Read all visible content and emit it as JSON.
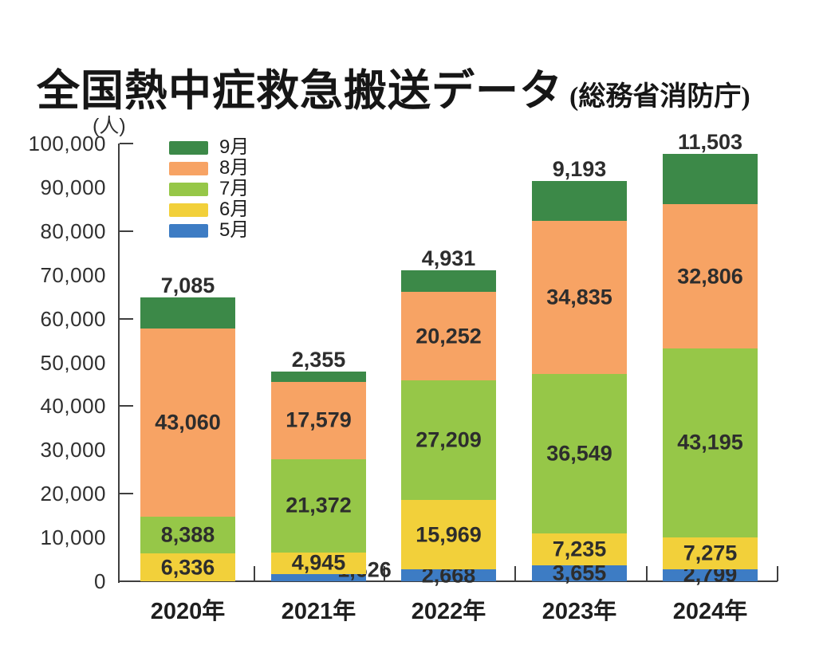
{
  "header": {
    "title": "全国熱中症救急搬送データ",
    "source": "(総務省消防庁)"
  },
  "colors": {
    "axis": "#3f3f3f",
    "value_label": "#2d2d2d",
    "background": "#ffffff"
  },
  "chart_data": {
    "type": "bar",
    "stacked": true,
    "title": "全国熱中症救急搬送データ",
    "subtitle": "(総務省消防庁)",
    "unit_label": "(人)",
    "xlabel": "",
    "ylabel": "(人)",
    "categories": [
      "2020年",
      "2021年",
      "2022年",
      "2023年",
      "2024年"
    ],
    "series": [
      {
        "name": "5月",
        "color": "#3d7cc4",
        "values": [
          null,
          1626,
          2668,
          3655,
          2799
        ],
        "label_placements": [
          "none",
          "right",
          "center",
          "center",
          "center"
        ]
      },
      {
        "name": "6月",
        "color": "#f2d03a",
        "values": [
          6336,
          4945,
          15969,
          7235,
          7275
        ],
        "label_placements": [
          "center",
          "center",
          "center",
          "center",
          "center"
        ]
      },
      {
        "name": "7月",
        "color": "#96c748",
        "values": [
          8388,
          21372,
          27209,
          36549,
          43195
        ],
        "label_placements": [
          "center",
          "center",
          "center",
          "center",
          "center"
        ]
      },
      {
        "name": "8月",
        "color": "#f7a364",
        "values": [
          43060,
          17579,
          20252,
          34835,
          32806
        ],
        "label_placements": [
          "center",
          "center",
          "center",
          "center",
          "center"
        ]
      },
      {
        "name": "9月",
        "color": "#3c8948",
        "values": [
          7085,
          2355,
          4931,
          9193,
          11503
        ],
        "label_placements": [
          "above",
          "above",
          "above",
          "above",
          "above"
        ]
      }
    ],
    "totals": [
      64869,
      47877,
      71029,
      91467,
      97578
    ],
    "ylim": [
      0,
      100000
    ],
    "ytick_label_step": 10000,
    "ytick_mark_step": 20000,
    "grid": false,
    "legend_position": "top-left-inside",
    "legend_order": [
      "9月",
      "8月",
      "7月",
      "6月",
      "5月"
    ]
  }
}
